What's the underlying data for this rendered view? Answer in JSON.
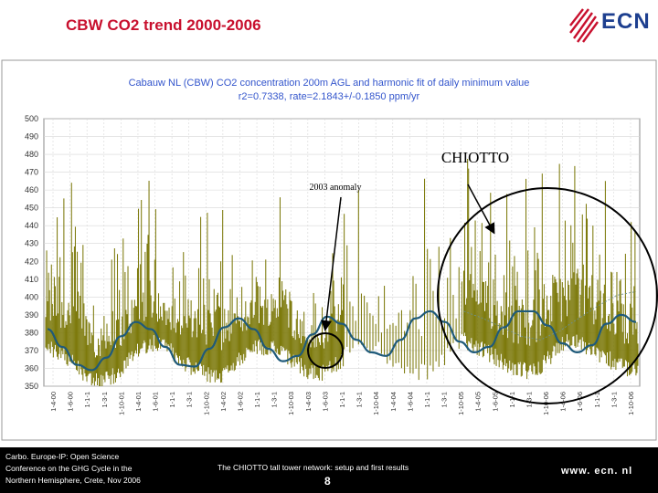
{
  "slide": {
    "title": "CBW CO2 trend 2000-2006",
    "logo_text": "ECN"
  },
  "chart_data": {
    "type": "line",
    "title": "Cabauw NL (CBW) CO2 concentration 200m AGL and harmonic fit of daily minimum value",
    "subtitle": "r2=0.7338, rate=2.1843+/-0.1850 ppm/yr",
    "ylim": [
      350,
      500
    ],
    "yticks": [
      350,
      360,
      370,
      380,
      390,
      400,
      410,
      420,
      430,
      440,
      450,
      460,
      470,
      480,
      490,
      500
    ],
    "x_tick_labels": [
      "1-4-00",
      "1-6-00",
      "1-1-1",
      "1-3-1",
      "1-10-01",
      "1-4-01",
      "1-6-01",
      "1-1-1",
      "1-3-1",
      "1-10-02",
      "1-4-02",
      "1-6-02",
      "1-1-1",
      "1-3-1",
      "1-10-03",
      "1-4-03",
      "1-6-03",
      "1-1-1",
      "1-3-1",
      "1-10-04",
      "1-4-04",
      "1-6-04",
      "1-1-1",
      "1-3-1",
      "1-10-05",
      "1-4-05",
      "1-6-05",
      "1-1-1",
      "1-3-1",
      "1-10-06",
      "1-4-06",
      "1-6-06",
      "1-1-1",
      "1-3-1",
      "1-10-06"
    ],
    "grid": true,
    "series": [
      {
        "color": "#7d7a0c",
        "baseline": [
          382,
          376,
          368,
          362,
          365,
          376,
          384,
          380,
          372,
          366,
          364,
          374,
          382,
          380,
          374,
          368,
          366,
          374,
          384,
          380,
          372,
          367,
          366,
          375,
          385,
          380,
          374,
          368,
          367,
          376,
          385,
          382,
          376,
          370,
          368
        ],
        "peaks": [
          430,
          458,
          474,
          418,
          428,
          448,
          472,
          420,
          430,
          448,
          462,
          418,
          428,
          452,
          470,
          404,
          416,
          450,
          462,
          420,
          426,
          454,
          474,
          490,
          482,
          472,
          458,
          462,
          470,
          480,
          472,
          488,
          470,
          454,
          440
        ]
      },
      {
        "color": "#1f5a7a",
        "values": [
          382,
          372,
          362,
          359,
          366,
          378,
          386,
          382,
          372,
          362,
          361,
          371,
          383,
          388,
          382,
          371,
          364,
          367,
          379,
          389,
          385,
          376,
          369,
          367,
          376,
          388,
          392,
          386,
          375,
          369,
          372,
          383,
          392,
          392,
          384,
          374,
          369,
          373,
          385,
          390,
          386
        ]
      },
      {
        "color": "#6b8f8f",
        "values": [
          392,
          388,
          383,
          378,
          376,
          381,
          388,
          395,
          401,
          403
        ]
      }
    ],
    "annotations": [
      {
        "text": "CHIOTTO"
      },
      {
        "text": "2003 anomaly"
      }
    ]
  },
  "footer": {
    "left_lines": [
      "Carbo. Europe-IP: Open Science",
      "Conference on the GHG Cycle in the",
      "Northern Hemisphere, Crete, Nov 2006"
    ],
    "center": "The CHIOTTO tall tower network: setup and first results",
    "page_number": "8",
    "website": "www. ecn. nl"
  },
  "colors": {
    "title_red": "#c8102e",
    "logo_blue": "#1d3f8f",
    "chart_title_blue": "#3355cc",
    "plot_background": "#ffffff"
  }
}
